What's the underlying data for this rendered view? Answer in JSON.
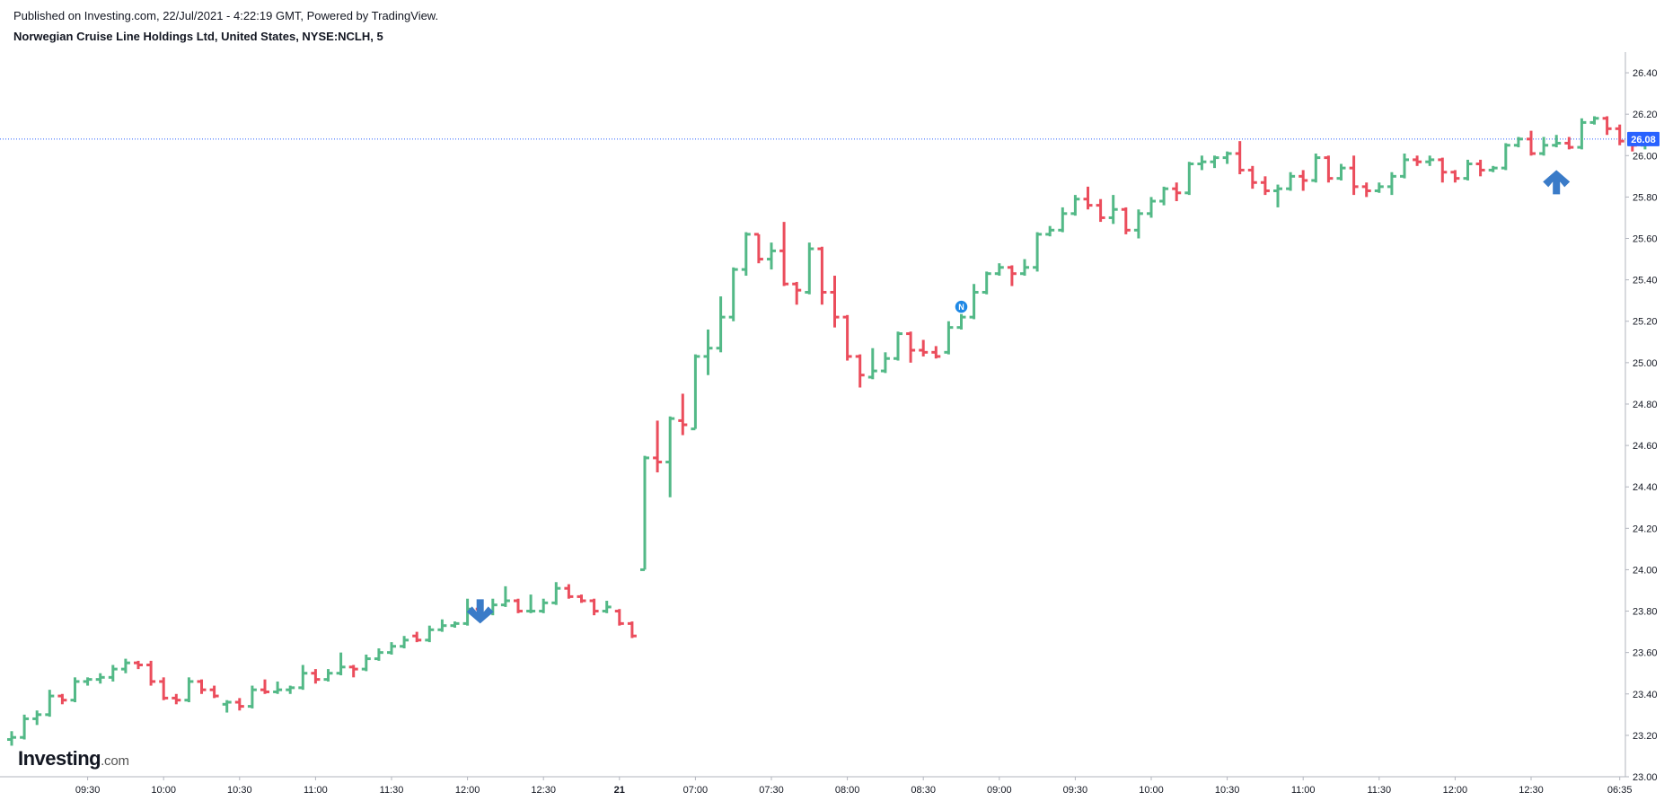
{
  "header": {
    "published": "Published on Investing.com, 22/Jul/2021 - 4:22:19 GMT, Powered by TradingView.",
    "title": "Norwegian Cruise Line Holdings Ltd, United States, NYSE:NCLH, 5"
  },
  "logo": {
    "main": "Investing",
    "suffix": ".com"
  },
  "colors": {
    "up": "#53b987",
    "down": "#eb4d5c",
    "price_line": "#2962ff",
    "price_label_bg": "#2962ff",
    "arrow": "#3a7bc8",
    "news_badge": "#1e88e5"
  },
  "chart_data": {
    "type": "ohlc",
    "symbol": "NYSE:NCLH",
    "interval": "5",
    "ylim": [
      23.0,
      26.5
    ],
    "y_ticks": [
      "23.00",
      "23.20",
      "23.40",
      "23.60",
      "23.80",
      "24.00",
      "24.20",
      "24.40",
      "24.60",
      "24.80",
      "25.00",
      "25.20",
      "25.40",
      "25.60",
      "25.80",
      "26.00",
      "26.20",
      "26.40"
    ],
    "x_tick_labels": [
      {
        "label": "09:30",
        "index": 6
      },
      {
        "label": "10:00",
        "index": 12
      },
      {
        "label": "10:30",
        "index": 18
      },
      {
        "label": "11:00",
        "index": 24
      },
      {
        "label": "11:30",
        "index": 30
      },
      {
        "label": "12:00",
        "index": 36
      },
      {
        "label": "12:30",
        "index": 42
      },
      {
        "label": "21",
        "index": 48
      },
      {
        "label": "07:00",
        "index": 54
      },
      {
        "label": "07:30",
        "index": 60
      },
      {
        "label": "08:00",
        "index": 66
      },
      {
        "label": "08:30",
        "index": 72
      },
      {
        "label": "09:00",
        "index": 78
      },
      {
        "label": "09:30",
        "index": 84
      },
      {
        "label": "10:00",
        "index": 90
      },
      {
        "label": "10:30",
        "index": 96
      },
      {
        "label": "11:00",
        "index": 102
      },
      {
        "label": "11:30",
        "index": 108
      },
      {
        "label": "12:00",
        "index": 114
      },
      {
        "label": "12:30",
        "index": 120
      },
      {
        "label": "06:35",
        "index": 127
      }
    ],
    "last_price": "26.08",
    "bars": [
      [
        23.18,
        23.22,
        23.15,
        23.19
      ],
      [
        23.19,
        23.3,
        23.18,
        23.28
      ],
      [
        23.28,
        23.32,
        23.25,
        23.3
      ],
      [
        23.3,
        23.42,
        23.29,
        23.39
      ],
      [
        23.39,
        23.4,
        23.35,
        23.37
      ],
      [
        23.37,
        23.48,
        23.36,
        23.46
      ],
      [
        23.46,
        23.48,
        23.44,
        23.47
      ],
      [
        23.47,
        23.5,
        23.45,
        23.48
      ],
      [
        23.48,
        23.54,
        23.46,
        23.52
      ],
      [
        23.52,
        23.57,
        23.5,
        23.55
      ],
      [
        23.55,
        23.56,
        23.52,
        23.54
      ],
      [
        23.54,
        23.56,
        23.44,
        23.46
      ],
      [
        23.46,
        23.48,
        23.37,
        23.38
      ],
      [
        23.38,
        23.4,
        23.35,
        23.37
      ],
      [
        23.37,
        23.48,
        23.36,
        23.46
      ],
      [
        23.46,
        23.47,
        23.4,
        23.42
      ],
      [
        23.42,
        23.44,
        23.38,
        23.39
      ],
      [
        23.35,
        23.37,
        23.31,
        23.36
      ],
      [
        23.36,
        23.38,
        23.32,
        23.34
      ],
      [
        23.34,
        23.44,
        23.33,
        23.42
      ],
      [
        23.42,
        23.47,
        23.4,
        23.41
      ],
      [
        23.41,
        23.46,
        23.4,
        23.42
      ],
      [
        23.42,
        23.44,
        23.4,
        23.43
      ],
      [
        23.43,
        23.54,
        23.42,
        23.5
      ],
      [
        23.5,
        23.52,
        23.45,
        23.47
      ],
      [
        23.47,
        23.52,
        23.46,
        23.5
      ],
      [
        23.5,
        23.6,
        23.49,
        23.53
      ],
      [
        23.53,
        23.54,
        23.48,
        23.52
      ],
      [
        23.52,
        23.59,
        23.51,
        23.57
      ],
      [
        23.57,
        23.62,
        23.56,
        23.6
      ],
      [
        23.6,
        23.65,
        23.59,
        23.63
      ],
      [
        23.63,
        23.68,
        23.62,
        23.66
      ],
      [
        23.68,
        23.7,
        23.65,
        23.66
      ],
      [
        23.66,
        23.73,
        23.65,
        23.71
      ],
      [
        23.71,
        23.76,
        23.7,
        23.73
      ],
      [
        23.73,
        23.75,
        23.72,
        23.74
      ],
      [
        23.74,
        23.86,
        23.73,
        23.81
      ],
      [
        23.81,
        23.84,
        23.77,
        23.79
      ],
      [
        23.79,
        23.86,
        23.78,
        23.83
      ],
      [
        23.83,
        23.92,
        23.82,
        23.85
      ],
      [
        23.85,
        23.86,
        23.79,
        23.8
      ],
      [
        23.8,
        23.88,
        23.79,
        23.8
      ],
      [
        23.8,
        23.86,
        23.79,
        23.84
      ],
      [
        23.84,
        23.94,
        23.83,
        23.91
      ],
      [
        23.91,
        23.93,
        23.86,
        23.87
      ],
      [
        23.87,
        23.88,
        23.84,
        23.85
      ],
      [
        23.85,
        23.86,
        23.78,
        23.8
      ],
      [
        23.8,
        23.85,
        23.79,
        23.82
      ],
      [
        23.8,
        23.81,
        23.73,
        23.74
      ],
      [
        23.74,
        23.75,
        23.67,
        23.68
      ],
      [
        24.0,
        24.55,
        24.0,
        24.54
      ],
      [
        24.54,
        24.72,
        24.47,
        24.52
      ],
      [
        24.52,
        24.74,
        24.35,
        24.73
      ],
      [
        24.72,
        24.85,
        24.65,
        24.7
      ],
      [
        24.68,
        25.04,
        24.68,
        25.03
      ],
      [
        25.03,
        25.16,
        24.94,
        25.07
      ],
      [
        25.07,
        25.32,
        25.05,
        25.22
      ],
      [
        25.22,
        25.46,
        25.2,
        25.45
      ],
      [
        25.45,
        25.63,
        25.42,
        25.62
      ],
      [
        25.62,
        25.62,
        25.48,
        25.5
      ],
      [
        25.5,
        25.58,
        25.45,
        25.54
      ],
      [
        25.54,
        25.68,
        25.37,
        25.38
      ],
      [
        25.38,
        25.39,
        25.28,
        25.35
      ],
      [
        25.34,
        25.58,
        25.33,
        25.55
      ],
      [
        25.55,
        25.56,
        25.28,
        25.34
      ],
      [
        25.34,
        25.42,
        25.17,
        25.22
      ],
      [
        25.22,
        25.23,
        25.01,
        25.03
      ],
      [
        25.03,
        25.04,
        24.88,
        24.94
      ],
      [
        24.93,
        25.07,
        24.92,
        24.96
      ],
      [
        24.96,
        25.05,
        24.95,
        25.02
      ],
      [
        25.02,
        25.15,
        25.01,
        25.14
      ],
      [
        25.14,
        25.15,
        25.0,
        25.06
      ],
      [
        25.06,
        25.11,
        25.03,
        25.05
      ],
      [
        25.05,
        25.08,
        25.02,
        25.03
      ],
      [
        25.05,
        25.2,
        25.04,
        25.17
      ],
      [
        25.17,
        25.26,
        25.16,
        25.22
      ],
      [
        25.22,
        25.38,
        25.21,
        25.34
      ],
      [
        25.34,
        25.44,
        25.33,
        25.43
      ],
      [
        25.43,
        25.48,
        25.42,
        25.46
      ],
      [
        25.46,
        25.47,
        25.37,
        25.43
      ],
      [
        25.43,
        25.5,
        25.42,
        25.46
      ],
      [
        25.46,
        25.63,
        25.44,
        25.62
      ],
      [
        25.62,
        25.66,
        25.61,
        25.64
      ],
      [
        25.64,
        25.75,
        25.63,
        25.72
      ],
      [
        25.72,
        25.81,
        25.71,
        25.79
      ],
      [
        25.79,
        25.85,
        25.74,
        25.76
      ],
      [
        25.76,
        25.79,
        25.68,
        25.7
      ],
      [
        25.7,
        25.81,
        25.67,
        25.74
      ],
      [
        25.74,
        25.75,
        25.62,
        25.64
      ],
      [
        25.64,
        25.74,
        25.6,
        25.72
      ],
      [
        25.72,
        25.8,
        25.7,
        25.78
      ],
      [
        25.78,
        25.85,
        25.76,
        25.84
      ],
      [
        25.84,
        25.87,
        25.78,
        25.82
      ],
      [
        25.82,
        25.97,
        25.81,
        25.96
      ],
      [
        25.96,
        26.0,
        25.93,
        25.97
      ],
      [
        25.97,
        26.0,
        25.94,
        25.99
      ],
      [
        25.99,
        26.02,
        25.96,
        26.01
      ],
      [
        26.01,
        26.07,
        25.91,
        25.93
      ],
      [
        25.93,
        25.95,
        25.84,
        25.87
      ],
      [
        25.87,
        25.9,
        25.81,
        25.83
      ],
      [
        25.83,
        25.86,
        25.75,
        25.84
      ],
      [
        25.84,
        25.92,
        25.83,
        25.9
      ],
      [
        25.9,
        25.93,
        25.83,
        25.88
      ],
      [
        25.88,
        26.01,
        25.87,
        25.99
      ],
      [
        25.99,
        26.0,
        25.87,
        25.89
      ],
      [
        25.89,
        25.96,
        25.88,
        25.94
      ],
      [
        25.94,
        26.0,
        25.81,
        25.85
      ],
      [
        25.85,
        25.87,
        25.8,
        25.83
      ],
      [
        25.83,
        25.87,
        25.82,
        25.85
      ],
      [
        25.85,
        25.92,
        25.81,
        25.9
      ],
      [
        25.9,
        26.01,
        25.89,
        25.98
      ],
      [
        25.98,
        26.0,
        25.95,
        25.97
      ],
      [
        25.97,
        26.0,
        25.95,
        25.98
      ],
      [
        25.98,
        25.99,
        25.87,
        25.92
      ],
      [
        25.92,
        25.93,
        25.87,
        25.89
      ],
      [
        25.89,
        25.98,
        25.88,
        25.96
      ],
      [
        25.96,
        25.98,
        25.9,
        25.93
      ],
      [
        25.93,
        25.95,
        25.92,
        25.94
      ],
      [
        25.94,
        26.06,
        25.93,
        26.05
      ],
      [
        26.05,
        26.09,
        26.04,
        26.08
      ],
      [
        26.08,
        26.12,
        26.0,
        26.01
      ],
      [
        26.01,
        26.09,
        26.0,
        26.05
      ],
      [
        26.05,
        26.1,
        26.04,
        26.06
      ],
      [
        26.06,
        26.09,
        26.03,
        26.04
      ],
      [
        26.04,
        26.18,
        26.03,
        26.16
      ],
      [
        26.16,
        26.19,
        26.15,
        26.18
      ],
      [
        26.18,
        26.19,
        26.1,
        26.13
      ],
      [
        26.13,
        26.15,
        26.05,
        26.07
      ],
      [
        26.07,
        26.08,
        26.02,
        26.05
      ],
      [
        26.05,
        26.1,
        26.03,
        26.08
      ]
    ],
    "markers": [
      {
        "type": "arrow-down",
        "index": 37,
        "price": 23.74
      },
      {
        "type": "arrow-up",
        "index": 122,
        "price": 25.93
      },
      {
        "type": "news",
        "label": "N",
        "index": 75,
        "price": 25.27
      }
    ]
  }
}
